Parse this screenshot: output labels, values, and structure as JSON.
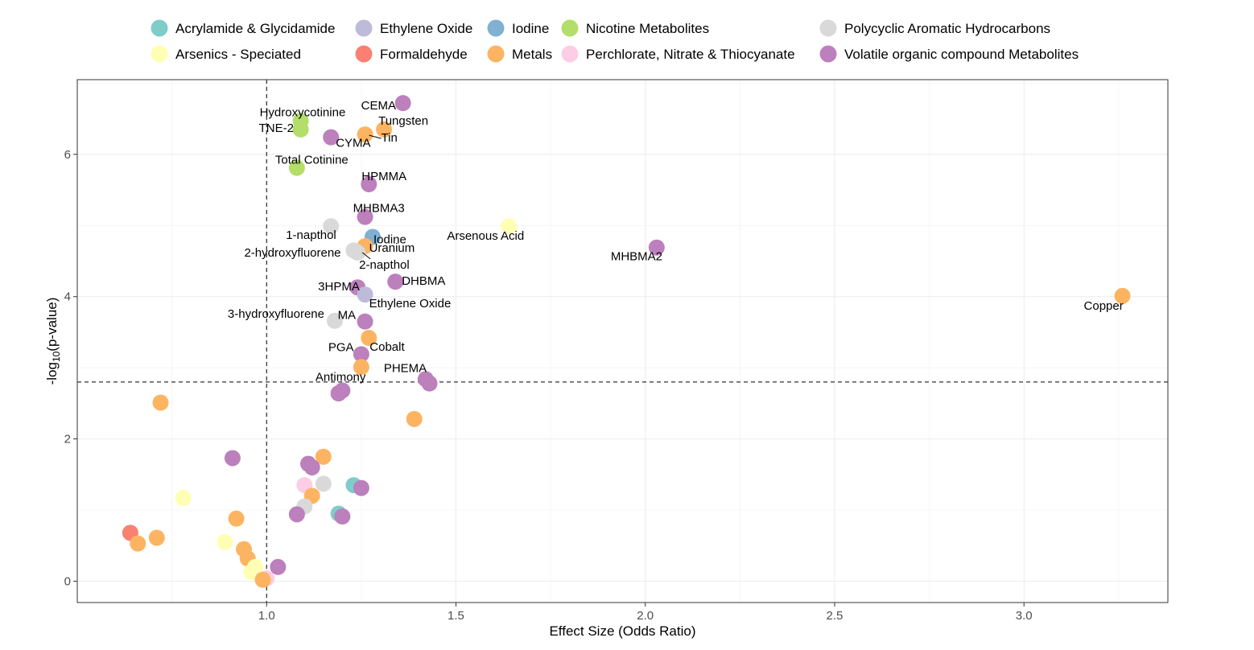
{
  "chart_data": {
    "type": "scatter",
    "xlabel": "Effect Size (Odds Ratio)",
    "ylabel_main": "-log",
    "ylabel_sub": "10",
    "ylabel_rest": "(p-value)",
    "xlim": [
      0.5,
      3.38
    ],
    "ylim": [
      -0.3,
      7.05
    ],
    "xticks": [
      {
        "v": 1.0,
        "label": "1.0"
      },
      {
        "v": 1.5,
        "label": "1.5"
      },
      {
        "v": 2.0,
        "label": "2.0"
      },
      {
        "v": 2.5,
        "label": "2.5"
      },
      {
        "v": 3.0,
        "label": "3.0"
      }
    ],
    "yticks": [
      {
        "v": 0,
        "label": "0"
      },
      {
        "v": 2,
        "label": "2"
      },
      {
        "v": 4,
        "label": "4"
      },
      {
        "v": 6,
        "label": "6"
      }
    ],
    "grid": true,
    "legend_position": "top",
    "vline_x": 1.0,
    "hline_y": 2.8,
    "categories": [
      {
        "name": "Acrylamide & Glycidamide",
        "color": "#7fcdca"
      },
      {
        "name": "Arsenics - Speciated",
        "color": "#ffffb3"
      },
      {
        "name": "Ethylene Oxide",
        "color": "#bebada"
      },
      {
        "name": "Formaldehyde",
        "color": "#fb8072"
      },
      {
        "name": "Iodine",
        "color": "#80b1d3"
      },
      {
        "name": "Metals",
        "color": "#fdb462"
      },
      {
        "name": "Nicotine Metabolites",
        "color": "#b3de69"
      },
      {
        "name": "Perchlorate, Nitrate & Thiocyanate",
        "color": "#fccde5"
      },
      {
        "name": "Polycyclic Aromatic Hydrocarbons",
        "color": "#d9d9d9"
      },
      {
        "name": "Volatile organic compound Metabolites",
        "color": "#bc80bd"
      }
    ],
    "points": [
      {
        "x": 1.36,
        "y": 6.72,
        "cat": 9,
        "label": "CEMA"
      },
      {
        "x": 1.09,
        "y": 6.47,
        "cat": 6,
        "label": "Hydroxycotinine"
      },
      {
        "x": 1.09,
        "y": 6.35,
        "cat": 6,
        "label": "TNE-2"
      },
      {
        "x": 1.31,
        "y": 6.35,
        "cat": 5,
        "label": "Tungsten"
      },
      {
        "x": 1.26,
        "y": 6.28,
        "cat": 5,
        "label": "Tin"
      },
      {
        "x": 1.17,
        "y": 6.24,
        "cat": 9,
        "label": "CYMA"
      },
      {
        "x": 1.08,
        "y": 5.81,
        "cat": 6,
        "label": "Total Cotinine"
      },
      {
        "x": 1.27,
        "y": 5.58,
        "cat": 9,
        "label": "HPMMA"
      },
      {
        "x": 1.26,
        "y": 5.12,
        "cat": 9,
        "label": "MHBMA3"
      },
      {
        "x": 1.17,
        "y": 4.99,
        "cat": 8,
        "label": "1-napthol"
      },
      {
        "x": 1.64,
        "y": 4.99,
        "cat": 1,
        "label": "Arsenous Acid"
      },
      {
        "x": 1.28,
        "y": 4.84,
        "cat": 4,
        "label": "Iodine"
      },
      {
        "x": 1.26,
        "y": 4.71,
        "cat": 5,
        "label": "Uranium"
      },
      {
        "x": 1.23,
        "y": 4.65,
        "cat": 8,
        "label": "2-hydroxyfluorene"
      },
      {
        "x": 1.24,
        "y": 4.62,
        "cat": 8,
        "label": "2-napthol"
      },
      {
        "x": 2.03,
        "y": 4.69,
        "cat": 9,
        "label": "MHBMA2"
      },
      {
        "x": 1.34,
        "y": 4.21,
        "cat": 9,
        "label": "DHBMA"
      },
      {
        "x": 1.24,
        "y": 4.13,
        "cat": 9,
        "label": "3HPMA"
      },
      {
        "x": 1.26,
        "y": 4.03,
        "cat": 2,
        "label": "Ethylene Oxide"
      },
      {
        "x": 3.26,
        "y": 4.01,
        "cat": 5,
        "label": "Copper"
      },
      {
        "x": 1.18,
        "y": 3.66,
        "cat": 8,
        "label": "3-hydroxyfluorene"
      },
      {
        "x": 1.26,
        "y": 3.65,
        "cat": 9,
        "label": "MA"
      },
      {
        "x": 1.27,
        "y": 3.42,
        "cat": 5,
        "label": "Cobalt"
      },
      {
        "x": 1.25,
        "y": 3.19,
        "cat": 9,
        "label": "PGA"
      },
      {
        "x": 1.25,
        "y": 3.01,
        "cat": 5,
        "label": "Antimony"
      },
      {
        "x": 1.42,
        "y": 2.84,
        "cat": 9,
        "label": "PHEMA"
      },
      {
        "x": 1.43,
        "y": 2.78,
        "cat": 9,
        "label": ""
      },
      {
        "x": 1.19,
        "y": 2.64,
        "cat": 9,
        "label": ""
      },
      {
        "x": 1.2,
        "y": 2.68,
        "cat": 9,
        "label": ""
      },
      {
        "x": 0.72,
        "y": 2.51,
        "cat": 5,
        "label": ""
      },
      {
        "x": 1.39,
        "y": 2.28,
        "cat": 5,
        "label": ""
      },
      {
        "x": 0.91,
        "y": 1.73,
        "cat": 9,
        "label": ""
      },
      {
        "x": 1.15,
        "y": 1.75,
        "cat": 5,
        "label": ""
      },
      {
        "x": 1.11,
        "y": 1.65,
        "cat": 9,
        "label": ""
      },
      {
        "x": 1.12,
        "y": 1.6,
        "cat": 9,
        "label": ""
      },
      {
        "x": 1.15,
        "y": 1.37,
        "cat": 8,
        "label": ""
      },
      {
        "x": 1.1,
        "y": 1.35,
        "cat": 7,
        "label": ""
      },
      {
        "x": 1.23,
        "y": 1.35,
        "cat": 0,
        "label": ""
      },
      {
        "x": 1.25,
        "y": 1.31,
        "cat": 9,
        "label": ""
      },
      {
        "x": 1.12,
        "y": 1.2,
        "cat": 5,
        "label": ""
      },
      {
        "x": 0.78,
        "y": 1.17,
        "cat": 1,
        "label": ""
      },
      {
        "x": 1.1,
        "y": 1.05,
        "cat": 8,
        "label": ""
      },
      {
        "x": 1.19,
        "y": 0.95,
        "cat": 0,
        "label": ""
      },
      {
        "x": 1.08,
        "y": 0.94,
        "cat": 9,
        "label": ""
      },
      {
        "x": 1.2,
        "y": 0.91,
        "cat": 9,
        "label": ""
      },
      {
        "x": 0.92,
        "y": 0.88,
        "cat": 5,
        "label": ""
      },
      {
        "x": 0.64,
        "y": 0.68,
        "cat": 3,
        "label": ""
      },
      {
        "x": 0.71,
        "y": 0.61,
        "cat": 5,
        "label": ""
      },
      {
        "x": 0.66,
        "y": 0.53,
        "cat": 5,
        "label": ""
      },
      {
        "x": 0.89,
        "y": 0.55,
        "cat": 1,
        "label": ""
      },
      {
        "x": 0.94,
        "y": 0.45,
        "cat": 5,
        "label": ""
      },
      {
        "x": 0.95,
        "y": 0.32,
        "cat": 5,
        "label": ""
      },
      {
        "x": 0.97,
        "y": 0.2,
        "cat": 1,
        "label": ""
      },
      {
        "x": 0.96,
        "y": 0.13,
        "cat": 1,
        "label": ""
      },
      {
        "x": 1.03,
        "y": 0.2,
        "cat": 9,
        "label": ""
      },
      {
        "x": 1.0,
        "y": 0.04,
        "cat": 7,
        "label": ""
      },
      {
        "x": 0.99,
        "y": 0.02,
        "cat": 5,
        "label": ""
      }
    ]
  }
}
